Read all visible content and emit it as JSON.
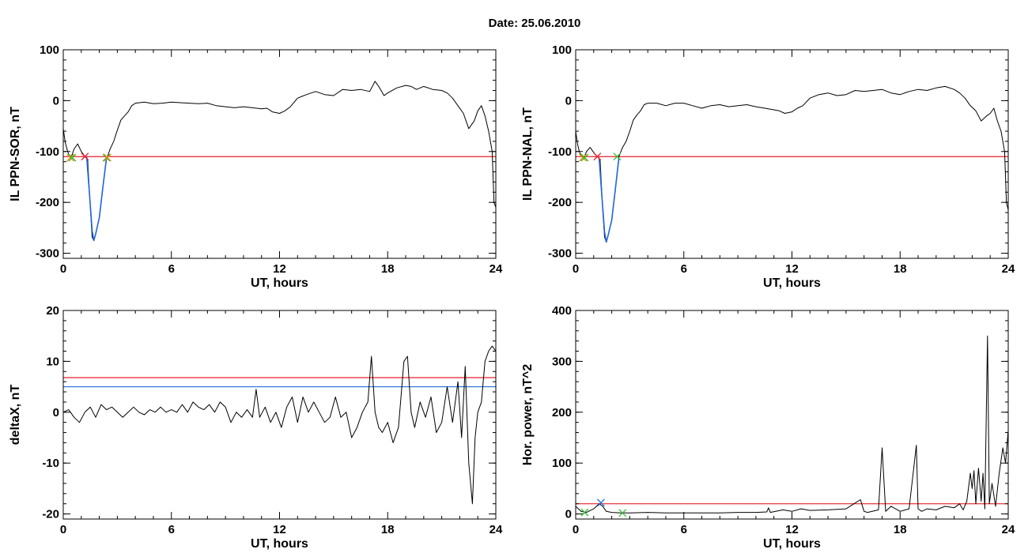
{
  "figure": {
    "title": "Date:  25.06.2010"
  },
  "colors": {
    "data_line": "#000000",
    "threshold_red": "#e8202a",
    "threshold_blue": "#1f6fd6",
    "dip_highlight": "#2266dd",
    "marker_orange": "#e08a10",
    "marker_red": "#e8202a",
    "marker_green": "#33bb33",
    "marker_blue": "#2244cc"
  },
  "chart_data": [
    {
      "id": "il-sor",
      "type": "line",
      "xlabel": "UT, hours",
      "ylabel": "IL PPN-SOR, nT",
      "xlim": [
        0,
        24
      ],
      "ylim": [
        -310,
        100
      ],
      "xticks": [
        "0",
        "6",
        "12",
        "18",
        "24"
      ],
      "xtick_values": [
        0,
        6,
        12,
        18,
        24
      ],
      "yticks": [
        "100",
        "0",
        "-100",
        "-200",
        "-300"
      ],
      "ytick_values": [
        100,
        0,
        -100,
        -200,
        -300
      ],
      "grid": false,
      "series": [
        {
          "style": "black",
          "x": [
            0,
            0.1,
            0.2,
            0.3,
            0.45,
            0.6,
            0.8,
            1.0,
            1.2,
            1.35,
            1.5,
            1.6,
            1.7,
            1.8,
            2.0,
            2.2,
            2.4,
            2.6,
            2.8,
            3.0,
            3.2,
            3.4,
            3.6,
            3.8,
            4.0,
            4.5,
            5.0,
            5.5,
            6.0,
            6.5,
            7.0,
            7.5,
            8.0,
            8.5,
            9.0,
            9.5,
            10.0,
            10.5,
            11.0,
            11.3,
            11.6,
            12.0,
            12.3,
            12.6,
            13.0,
            13.5,
            14.0,
            14.5,
            15.0,
            15.5,
            16.0,
            16.5,
            17.0,
            17.3,
            17.5,
            17.8,
            18.0,
            18.5,
            19.0,
            19.3,
            19.6,
            20.0,
            20.5,
            21.0,
            21.3,
            21.6,
            21.9,
            22.2,
            22.5,
            22.8,
            23.0,
            23.2,
            23.4,
            23.6,
            23.8,
            23.9,
            24.0
          ],
          "y": [
            -55,
            -80,
            -95,
            -105,
            -110,
            -95,
            -85,
            -100,
            -110,
            -115,
            -210,
            -268,
            -275,
            -262,
            -230,
            -170,
            -115,
            -95,
            -80,
            -58,
            -38,
            -30,
            -22,
            -10,
            -5,
            -3,
            -6,
            -5,
            -3,
            -4,
            -5,
            -6,
            -5,
            -10,
            -12,
            -14,
            -12,
            -14,
            -16,
            -15,
            -22,
            -25,
            -20,
            -12,
            5,
            12,
            18,
            12,
            10,
            22,
            20,
            22,
            18,
            38,
            28,
            10,
            15,
            25,
            30,
            28,
            22,
            28,
            22,
            20,
            15,
            5,
            -10,
            -25,
            -55,
            -40,
            -20,
            -10,
            -30,
            -60,
            -100,
            -200,
            -210
          ]
        },
        {
          "style": "blue",
          "x": [
            1.3,
            1.45,
            1.6,
            1.7,
            1.8,
            2.0,
            2.2,
            2.4
          ],
          "y": [
            -110,
            -180,
            -255,
            -275,
            -262,
            -230,
            -170,
            -112
          ]
        }
      ],
      "thresholds": [
        {
          "color": "red",
          "y": -110
        }
      ],
      "markers": [
        {
          "x": 0.4,
          "y": -112,
          "color": "orange"
        },
        {
          "x": 0.5,
          "y": -112,
          "color": "green"
        },
        {
          "x": 1.2,
          "y": -110,
          "color": "red"
        },
        {
          "x": 2.4,
          "y": -112,
          "color": "green"
        },
        {
          "x": 2.45,
          "y": -112,
          "color": "orange"
        }
      ]
    },
    {
      "id": "il-nal",
      "type": "line",
      "xlabel": "UT, hours",
      "ylabel": "IL PPN-NAL, nT",
      "xlim": [
        0,
        24
      ],
      "ylim": [
        -310,
        100
      ],
      "xticks": [
        "0",
        "6",
        "12",
        "18",
        "24"
      ],
      "xtick_values": [
        0,
        6,
        12,
        18,
        24
      ],
      "yticks": [
        "100",
        "0",
        "-100",
        "-200",
        "-300"
      ],
      "ytick_values": [
        100,
        0,
        -100,
        -200,
        -300
      ],
      "grid": false,
      "series": [
        {
          "style": "black",
          "x": [
            0,
            0.1,
            0.2,
            0.3,
            0.45,
            0.6,
            0.8,
            1.0,
            1.2,
            1.35,
            1.5,
            1.6,
            1.7,
            1.8,
            2.0,
            2.2,
            2.4,
            2.6,
            2.8,
            3.0,
            3.2,
            3.4,
            3.6,
            3.8,
            4.0,
            4.5,
            5.0,
            5.5,
            6.0,
            6.5,
            7.0,
            7.5,
            8.0,
            8.5,
            9.0,
            9.5,
            10.0,
            10.5,
            11.0,
            11.3,
            11.6,
            12.0,
            12.3,
            12.6,
            13.0,
            13.5,
            14.0,
            14.5,
            15.0,
            15.5,
            16.0,
            16.5,
            17.0,
            17.5,
            18.0,
            18.5,
            19.0,
            19.5,
            20.0,
            20.5,
            21.0,
            21.3,
            21.6,
            21.9,
            22.2,
            22.5,
            22.8,
            23.0,
            23.2,
            23.4,
            23.6,
            23.8,
            23.9,
            24.0
          ],
          "y": [
            -60,
            -85,
            -100,
            -108,
            -112,
            -100,
            -92,
            -102,
            -110,
            -115,
            -215,
            -268,
            -278,
            -265,
            -235,
            -175,
            -110,
            -92,
            -80,
            -60,
            -38,
            -28,
            -20,
            -8,
            -5,
            -5,
            -10,
            -5,
            -5,
            -10,
            -15,
            -10,
            -8,
            -12,
            -10,
            -8,
            -12,
            -15,
            -18,
            -20,
            -25,
            -22,
            -15,
            -10,
            5,
            12,
            15,
            10,
            12,
            20,
            18,
            20,
            22,
            15,
            12,
            18,
            22,
            20,
            25,
            28,
            22,
            15,
            5,
            -10,
            -20,
            -40,
            -30,
            -25,
            -15,
            -40,
            -60,
            -100,
            -200,
            -215
          ]
        },
        {
          "style": "blue",
          "x": [
            1.3,
            1.45,
            1.6,
            1.7,
            1.8,
            2.0,
            2.2,
            2.4
          ],
          "y": [
            -112,
            -185,
            -258,
            -278,
            -265,
            -235,
            -175,
            -112
          ]
        }
      ],
      "thresholds": [
        {
          "color": "red",
          "y": -110
        }
      ],
      "markers": [
        {
          "x": 0.4,
          "y": -112,
          "color": "orange"
        },
        {
          "x": 0.5,
          "y": -112,
          "color": "green"
        },
        {
          "x": 1.2,
          "y": -110,
          "color": "red"
        },
        {
          "x": 2.3,
          "y": -110,
          "color": "green"
        }
      ]
    },
    {
      "id": "deltax",
      "type": "line",
      "xlabel": "UT, hours",
      "ylabel": "deltaX, nT",
      "xlim": [
        0,
        24
      ],
      "ylim": [
        -21,
        20
      ],
      "xticks": [
        "0",
        "6",
        "12",
        "18",
        "24"
      ],
      "xtick_values": [
        0,
        6,
        12,
        18,
        24
      ],
      "yticks": [
        "20",
        "10",
        "0",
        "-10",
        "-20"
      ],
      "ytick_values": [
        20,
        10,
        0,
        -10,
        -20
      ],
      "grid": false,
      "series": [
        {
          "style": "black",
          "x": [
            0,
            0.3,
            0.6,
            0.9,
            1.2,
            1.5,
            1.8,
            2.1,
            2.4,
            2.7,
            3.0,
            3.3,
            3.6,
            3.9,
            4.2,
            4.5,
            4.8,
            5.1,
            5.4,
            5.7,
            6.0,
            6.3,
            6.6,
            6.9,
            7.2,
            7.5,
            7.8,
            8.1,
            8.4,
            8.7,
            9.0,
            9.3,
            9.6,
            9.9,
            10.2,
            10.5,
            10.7,
            10.9,
            11.2,
            11.5,
            11.8,
            12.1,
            12.4,
            12.7,
            13.0,
            13.3,
            13.6,
            13.9,
            14.2,
            14.5,
            14.8,
            15.1,
            15.4,
            15.7,
            16.0,
            16.3,
            16.6,
            16.9,
            17.1,
            17.3,
            17.5,
            17.7,
            18.0,
            18.3,
            18.6,
            18.9,
            19.1,
            19.3,
            19.5,
            19.8,
            20.1,
            20.4,
            20.7,
            21.0,
            21.3,
            21.6,
            21.9,
            22.1,
            22.3,
            22.5,
            22.7,
            22.85,
            23.0,
            23.2,
            23.4,
            23.6,
            23.8,
            24.0
          ],
          "y": [
            0,
            0.5,
            -1,
            -2,
            0,
            1,
            -1,
            1.5,
            0.5,
            1,
            0,
            -1,
            0,
            1,
            0,
            -0.5,
            0.5,
            0,
            1,
            0,
            0.5,
            0,
            1.5,
            0,
            2,
            1,
            0.5,
            1.5,
            0,
            2,
            1,
            -2,
            0,
            -1,
            0.5,
            -1,
            4.5,
            -1,
            1,
            -2,
            0,
            -3,
            1,
            3,
            -2,
            3,
            0,
            2,
            0,
            -2,
            -1,
            3,
            -1,
            0,
            -5,
            -3,
            0,
            2,
            11,
            0,
            -3,
            -4,
            -2,
            -6,
            -3,
            10,
            11,
            0,
            -3,
            2,
            -1,
            3,
            -4,
            -2,
            5,
            -2,
            6,
            -5,
            9,
            -10,
            -18,
            -5,
            0,
            2,
            10,
            12,
            13,
            12
          ]
        }
      ],
      "thresholds": [
        {
          "color": "red",
          "y": 6.8
        },
        {
          "color": "blue",
          "y": 5
        }
      ],
      "markers": []
    },
    {
      "id": "hor-power",
      "type": "line",
      "xlabel": "UT, hours",
      "ylabel": "Hor. power, nT^2",
      "xlim": [
        0,
        24
      ],
      "ylim": [
        -10,
        400
      ],
      "xticks": [
        "0",
        "6",
        "12",
        "18",
        "24"
      ],
      "xtick_values": [
        0,
        6,
        12,
        18,
        24
      ],
      "yticks": [
        "400",
        "300",
        "200",
        "100",
        "0"
      ],
      "ytick_values": [
        400,
        300,
        200,
        100,
        0
      ],
      "grid": false,
      "series": [
        {
          "style": "black",
          "x": [
            0,
            0.3,
            0.6,
            1.0,
            1.3,
            1.5,
            1.7,
            2.0,
            2.5,
            3.0,
            4.0,
            5.0,
            6.0,
            7.0,
            8.0,
            9.0,
            10.0,
            10.6,
            10.7,
            10.8,
            11.5,
            12.0,
            12.5,
            13.0,
            14.0,
            15.0,
            15.8,
            16.0,
            16.2,
            16.8,
            17.0,
            17.2,
            17.5,
            18.0,
            18.5,
            18.9,
            19.0,
            19.2,
            19.5,
            20.0,
            20.5,
            21.0,
            21.3,
            21.5,
            21.7,
            21.9,
            22.0,
            22.1,
            22.2,
            22.35,
            22.5,
            22.6,
            22.7,
            22.85,
            22.95,
            23.1,
            23.3,
            23.5,
            23.7,
            23.85,
            24.0
          ],
          "y": [
            15,
            5,
            3,
            10,
            20,
            15,
            5,
            3,
            2,
            2,
            3,
            2,
            2,
            2,
            2,
            3,
            3,
            4,
            12,
            3,
            8,
            5,
            10,
            7,
            8,
            10,
            28,
            5,
            3,
            8,
            130,
            5,
            15,
            5,
            10,
            135,
            10,
            5,
            10,
            8,
            15,
            12,
            20,
            8,
            25,
            80,
            50,
            85,
            20,
            90,
            25,
            80,
            10,
            350,
            20,
            60,
            15,
            80,
            130,
            100,
            165
          ]
        }
      ],
      "thresholds": [
        {
          "color": "red",
          "y": 20
        }
      ],
      "markers": [
        {
          "x": 0.5,
          "y": 3,
          "color": "green"
        },
        {
          "x": 1.4,
          "y": 22,
          "color": "blue"
        },
        {
          "x": 2.6,
          "y": 2,
          "color": "green"
        }
      ]
    }
  ]
}
